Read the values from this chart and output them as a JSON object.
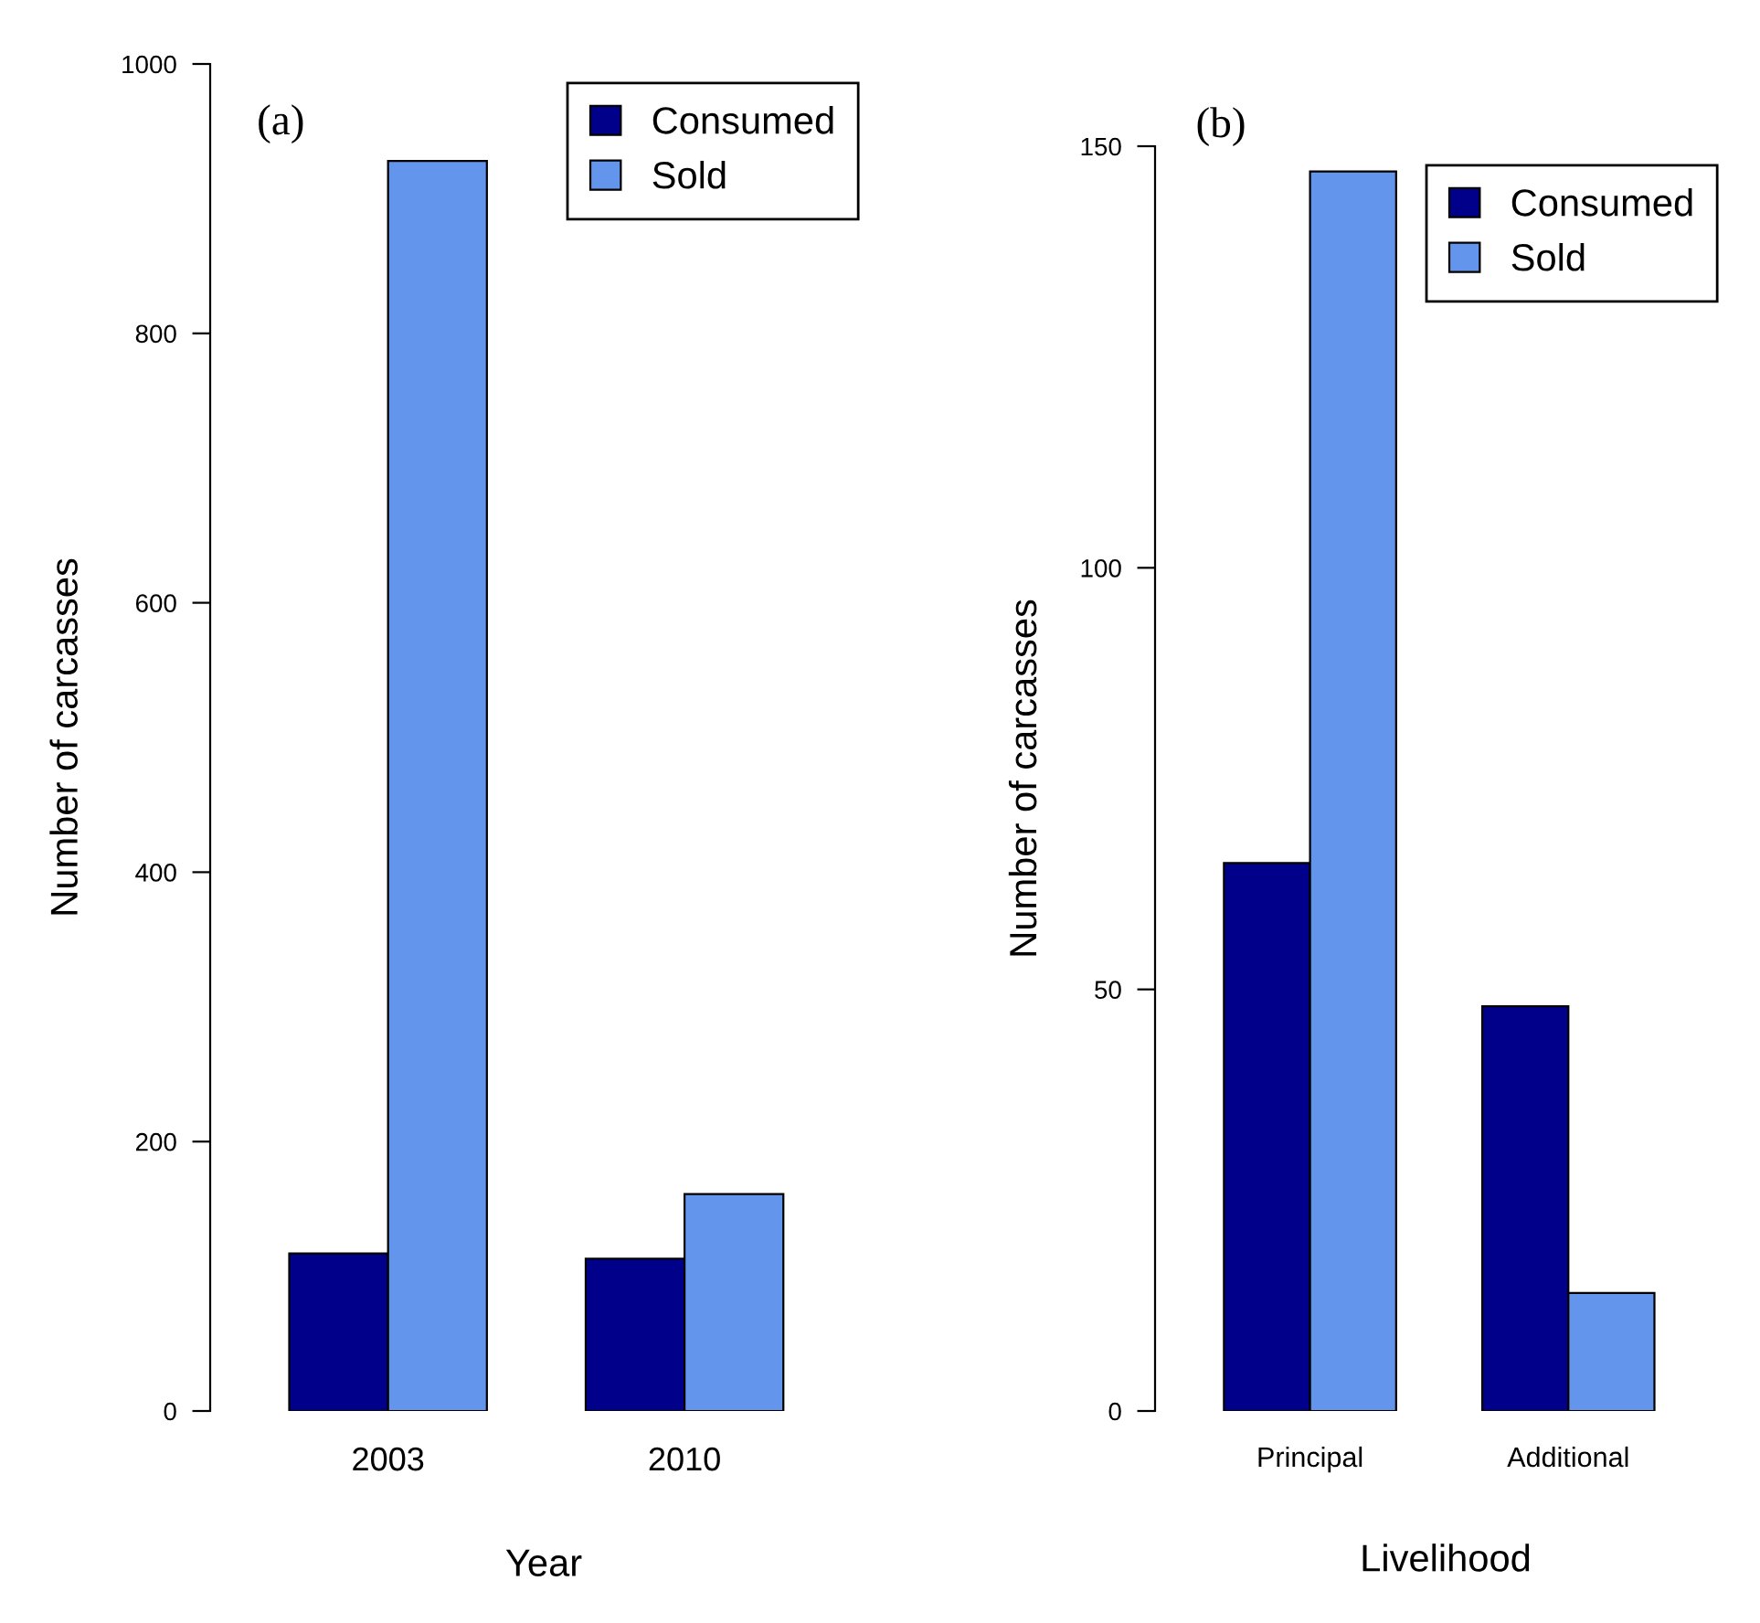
{
  "chart_data": [
    {
      "type": "bar",
      "annotations": [
        "(a)"
      ],
      "xlabel": "Year",
      "ylabel": "Number of carcasses",
      "categories": [
        "2003",
        "2010"
      ],
      "series": [
        {
          "name": "Consumed",
          "color": "#00008b",
          "values": [
            117,
            113
          ]
        },
        {
          "name": "Sold",
          "color": "#6495ed",
          "values": [
            928,
            161
          ]
        }
      ],
      "ylim": [
        0,
        1000
      ],
      "yticks": [
        0,
        200,
        400,
        600,
        800,
        1000
      ],
      "grid": false,
      "legend": "top right"
    },
    {
      "type": "bar",
      "annotations": [
        "(b)"
      ],
      "xlabel": "Livelihood",
      "ylabel": "Number of carcasses",
      "categories": [
        "Principal",
        "Additional"
      ],
      "series": [
        {
          "name": "Consumed",
          "color": "#00008b",
          "values": [
            65,
            48
          ]
        },
        {
          "name": "Sold",
          "color": "#6495ed",
          "values": [
            147,
            14
          ]
        }
      ],
      "ylim": [
        0,
        150
      ],
      "yticks": [
        0,
        50,
        100,
        150
      ],
      "grid": false,
      "legend": "top right"
    }
  ]
}
